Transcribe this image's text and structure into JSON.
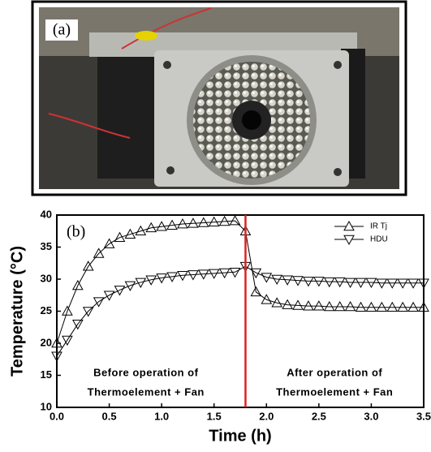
{
  "photo": {
    "label": "(a)"
  },
  "chart_data": {
    "type": "scatter-line",
    "panel_label": "(b)",
    "x_label": "Time (h)",
    "y_label": "Temperature (°C)",
    "xlim": [
      0,
      3.5
    ],
    "xticks": [
      {
        "value": 0,
        "label": "0.0"
      },
      0.5,
      {
        "value": 1,
        "label": "1.0"
      },
      1.5,
      {
        "value": 2,
        "label": "2.0"
      },
      2.5,
      {
        "value": 3,
        "label": "3.0"
      },
      3.5
    ],
    "ylim": [
      10,
      40
    ],
    "yticks": [
      10,
      15,
      20,
      25,
      30,
      35,
      40
    ],
    "x": [
      0,
      0.1,
      0.2,
      0.3,
      0.4,
      0.5,
      0.6,
      0.7,
      0.8,
      0.9,
      1.0,
      1.1,
      1.2,
      1.3,
      1.4,
      1.5,
      1.6,
      1.7,
      1.8,
      1.9,
      2.0,
      2.1,
      2.2,
      2.3,
      2.4,
      2.5,
      2.6,
      2.7,
      2.8,
      2.9,
      3.0,
      3.1,
      3.2,
      3.3,
      3.4,
      3.5
    ],
    "series": [
      {
        "name": "IR Tj",
        "marker": "up",
        "color": "#000000",
        "values": [
          20,
          25,
          29,
          32,
          34,
          35.5,
          36.5,
          37,
          37.5,
          38,
          38.2,
          38.4,
          38.6,
          38.7,
          38.8,
          38.9,
          39,
          39.1,
          37.5,
          28,
          26.8,
          26.3,
          26,
          25.9,
          25.8,
          25.8,
          25.7,
          25.7,
          25.7,
          25.6,
          25.6,
          25.6,
          25.6,
          25.6,
          25.6,
          25.6
        ]
      },
      {
        "name": "HDU",
        "marker": "down",
        "color": "#000000",
        "values": [
          18,
          20.5,
          23,
          25,
          26.5,
          27.5,
          28.3,
          29,
          29.5,
          29.9,
          30.2,
          30.4,
          30.6,
          30.7,
          30.8,
          30.9,
          31,
          31.1,
          32,
          31,
          30.3,
          30,
          29.9,
          29.8,
          29.7,
          29.7,
          29.6,
          29.6,
          29.5,
          29.5,
          29.5,
          29.4,
          29.4,
          29.4,
          29.4,
          29.4
        ]
      }
    ],
    "vertical_line": {
      "x": 1.8,
      "color": "#e02020"
    },
    "annotations": [
      {
        "x": 0.85,
        "y": 15.3,
        "text": "Before operation of"
      },
      {
        "x": 0.85,
        "y": 12.3,
        "text": "Thermoelement + Fan"
      },
      {
        "x": 2.65,
        "y": 15.3,
        "text": "After operation of"
      },
      {
        "x": 2.65,
        "y": 12.3,
        "text": "Thermoelement + Fan"
      }
    ],
    "legend": "top-right"
  }
}
